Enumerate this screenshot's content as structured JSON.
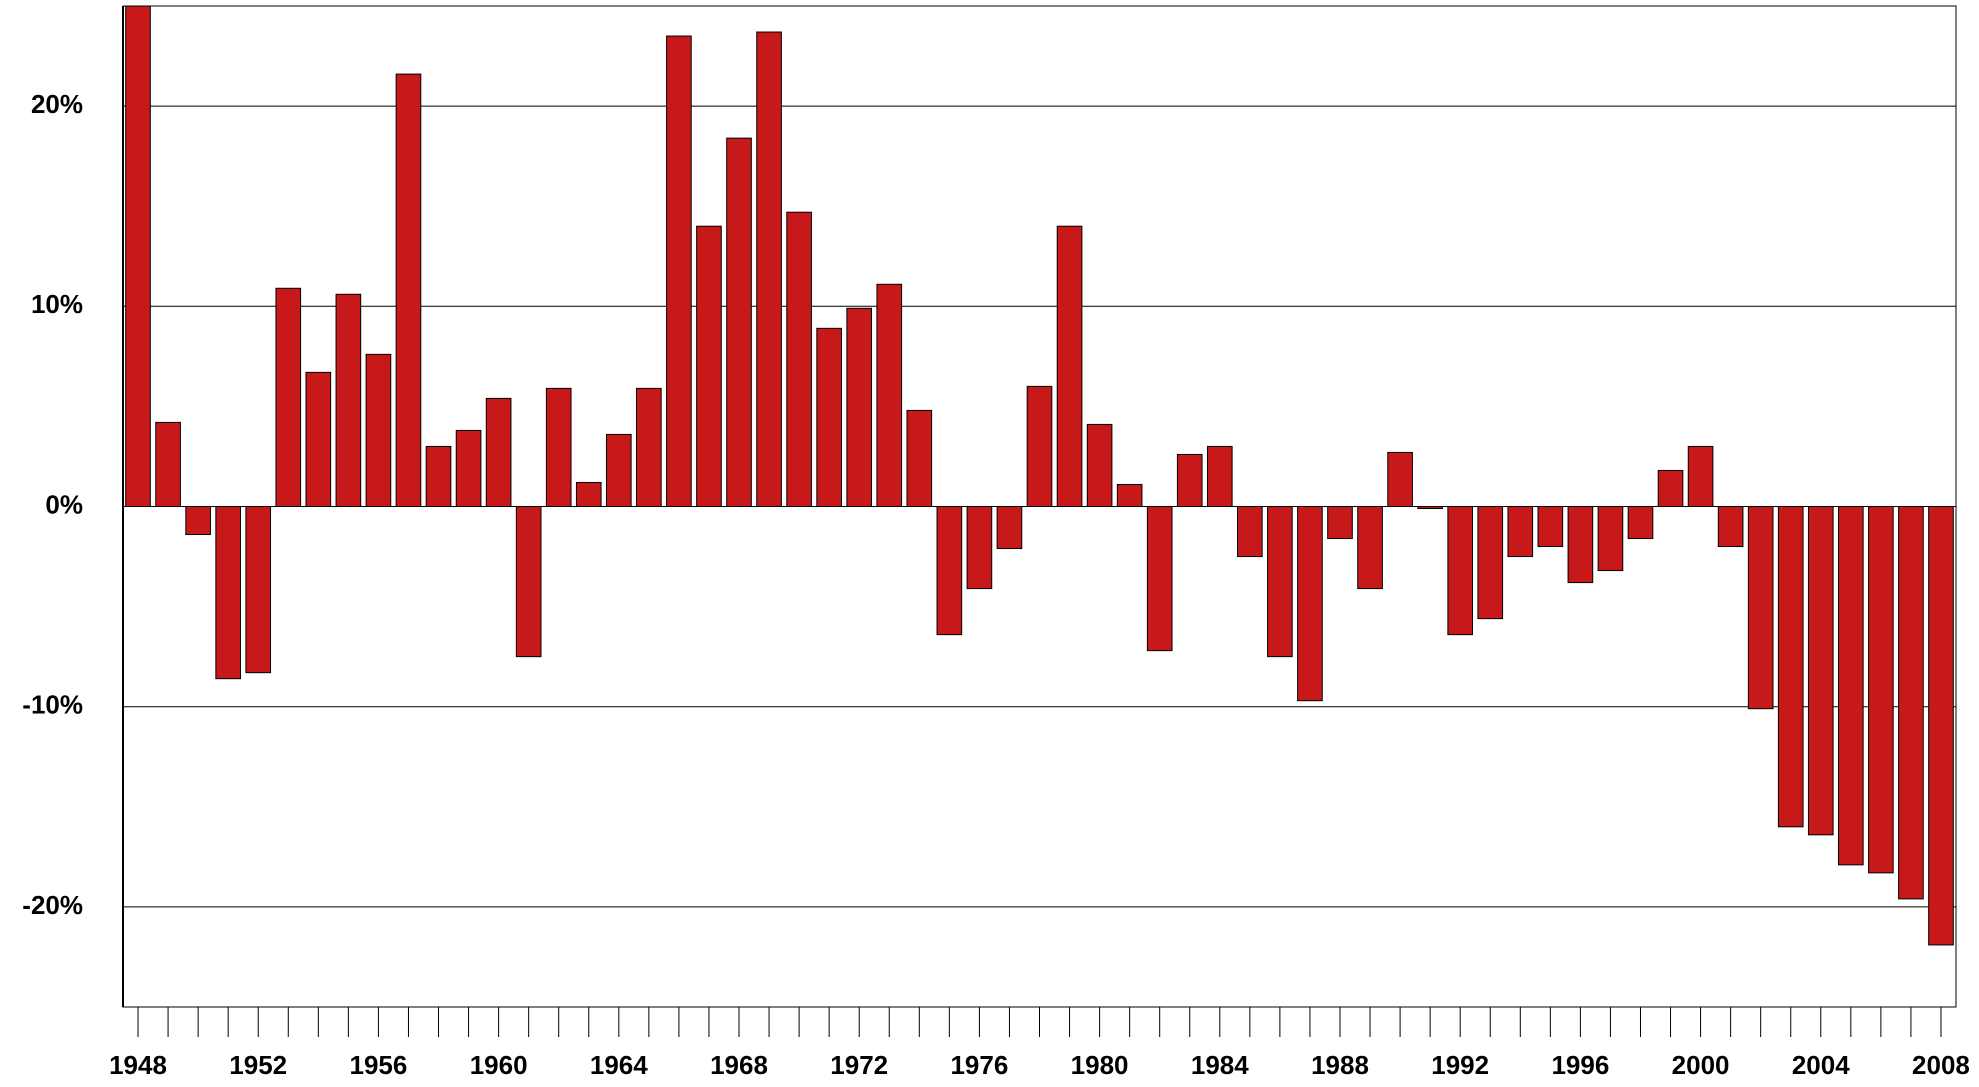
{
  "chart_data": {
    "type": "bar",
    "categories": [
      "1948",
      null,
      null,
      null,
      "1952",
      null,
      null,
      null,
      "1956",
      null,
      null,
      null,
      "1960",
      null,
      null,
      null,
      "1964",
      null,
      null,
      null,
      "1968",
      null,
      null,
      null,
      "1972",
      null,
      null,
      null,
      "1976",
      null,
      null,
      null,
      "1980",
      null,
      null,
      null,
      "1984",
      null,
      null,
      null,
      "1988",
      null,
      null,
      null,
      "1992",
      null,
      null,
      null,
      "1996",
      null,
      null,
      null,
      "2000",
      null,
      null,
      null,
      "2004",
      null,
      null,
      null,
      "2008"
    ],
    "values": [
      25,
      4.2,
      -1.4,
      -8.6,
      -8.3,
      10.9,
      6.7,
      10.6,
      7.6,
      21.6,
      3.0,
      3.8,
      5.4,
      -7.5,
      5.9,
      1.2,
      3.6,
      5.9,
      23.5,
      14.0,
      18.4,
      23.7,
      14.7,
      8.9,
      9.9,
      11.1,
      4.8,
      -6.4,
      -4.1,
      -2.1,
      6.0,
      14.0,
      4.1,
      1.1,
      -7.2,
      2.6,
      3.0,
      -2.5,
      -7.5,
      -9.7,
      -1.6,
      -4.1,
      2.7,
      -0.1,
      -6.4,
      -5.6,
      -2.5,
      -2.0,
      -3.8,
      -3.2,
      -1.6,
      1.8,
      3.0,
      -2.0,
      -10.1,
      -16.0,
      -16.4,
      -17.9,
      -18.3,
      -19.6,
      -21.9
    ],
    "color": "#c8191a",
    "ylim": [
      -25,
      25
    ],
    "yticks": [
      {
        "value": -20,
        "label": "-20%"
      },
      {
        "value": -10,
        "label": "-10%"
      },
      {
        "value": 0,
        "label": "0%"
      },
      {
        "value": 10,
        "label": "10%"
      },
      {
        "value": 20,
        "label": "20%"
      }
    ],
    "grid": true
  }
}
